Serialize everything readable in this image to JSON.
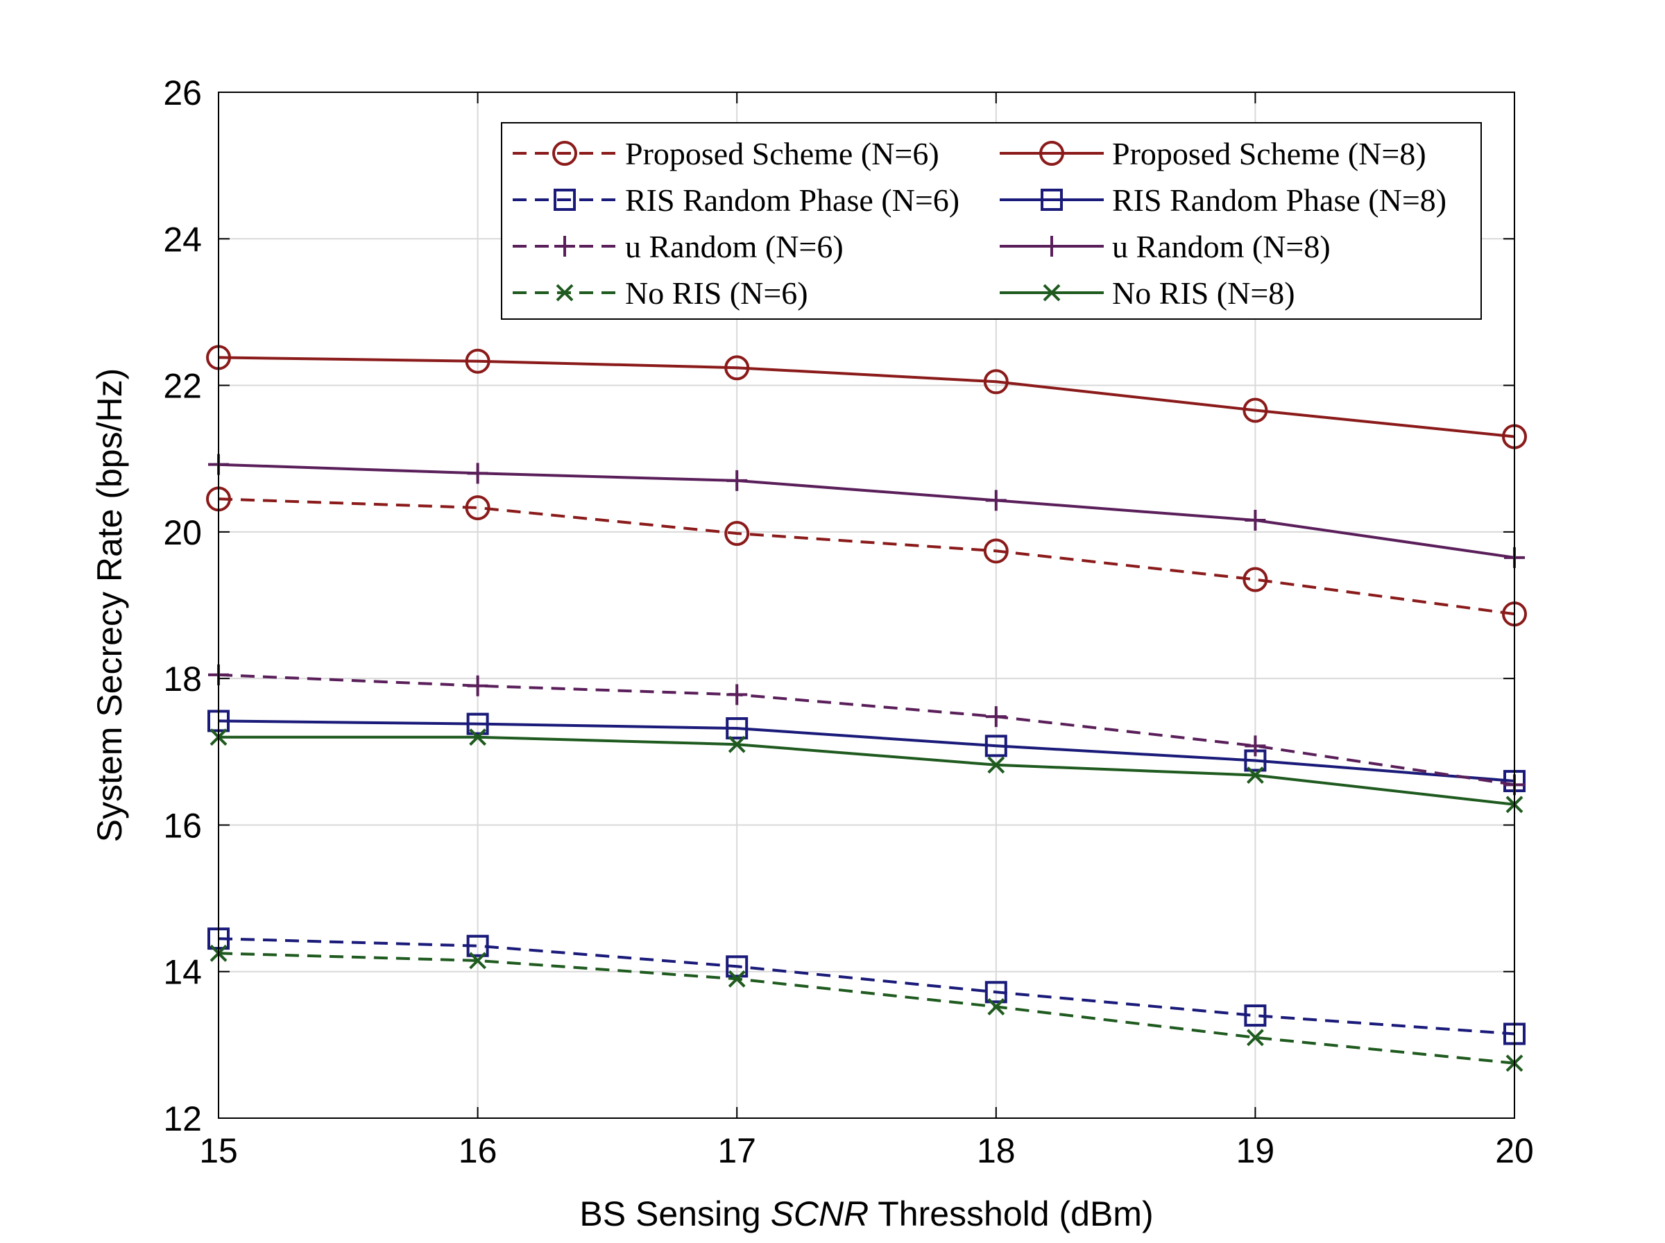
{
  "chart_data": {
    "type": "line",
    "title": "",
    "xlabel_parts": [
      "BS Sensing ",
      "SCNR",
      " Thresshold (dBm)"
    ],
    "ylabel": "System Secrecy Rate (bps/Hz)",
    "xlim": [
      15,
      20
    ],
    "ylim": [
      12,
      26
    ],
    "xticks": [
      15,
      16,
      17,
      18,
      19,
      20
    ],
    "yticks": [
      12,
      14,
      16,
      18,
      20,
      22,
      24,
      26
    ],
    "grid": true,
    "legend_position": "top-right",
    "x": [
      15,
      16,
      17,
      18,
      19,
      20
    ],
    "series": [
      {
        "name": "Proposed Scheme (N=6)",
        "values": [
          20.45,
          20.33,
          19.98,
          19.74,
          19.35,
          18.88
        ],
        "color": "#8b1a1a",
        "dash": "dashed",
        "marker": "circle"
      },
      {
        "name": "Proposed Scheme (N=8)",
        "values": [
          22.38,
          22.33,
          22.24,
          22.05,
          21.66,
          21.3
        ],
        "color": "#8b1a1a",
        "dash": "solid",
        "marker": "circle"
      },
      {
        "name": "RIS Random Phase (N=6)",
        "values": [
          14.45,
          14.35,
          14.07,
          13.72,
          13.4,
          13.15
        ],
        "color": "#1a1a7a",
        "dash": "dashed",
        "marker": "square"
      },
      {
        "name": "RIS Random Phase (N=8)",
        "values": [
          17.42,
          17.38,
          17.32,
          17.08,
          16.88,
          16.6
        ],
        "color": "#1a1a7a",
        "dash": "solid",
        "marker": "square"
      },
      {
        "name": "u Random (N=6)",
        "values": [
          18.05,
          17.9,
          17.78,
          17.48,
          17.08,
          16.55
        ],
        "color": "#5a1f5a",
        "dash": "dashed",
        "marker": "plus"
      },
      {
        "name": "u Random (N=8)",
        "values": [
          20.92,
          20.8,
          20.7,
          20.43,
          20.16,
          19.65
        ],
        "color": "#5a1f5a",
        "dash": "solid",
        "marker": "plus"
      },
      {
        "name": "No RIS (N=6)",
        "values": [
          14.25,
          14.15,
          13.9,
          13.52,
          13.1,
          12.75
        ],
        "color": "#1f5a1f",
        "dash": "dashed",
        "marker": "x"
      },
      {
        "name": "No RIS (N=8)",
        "values": [
          17.2,
          17.2,
          17.1,
          16.82,
          16.68,
          16.28
        ],
        "color": "#1f5a1f",
        "dash": "solid",
        "marker": "x"
      }
    ]
  }
}
